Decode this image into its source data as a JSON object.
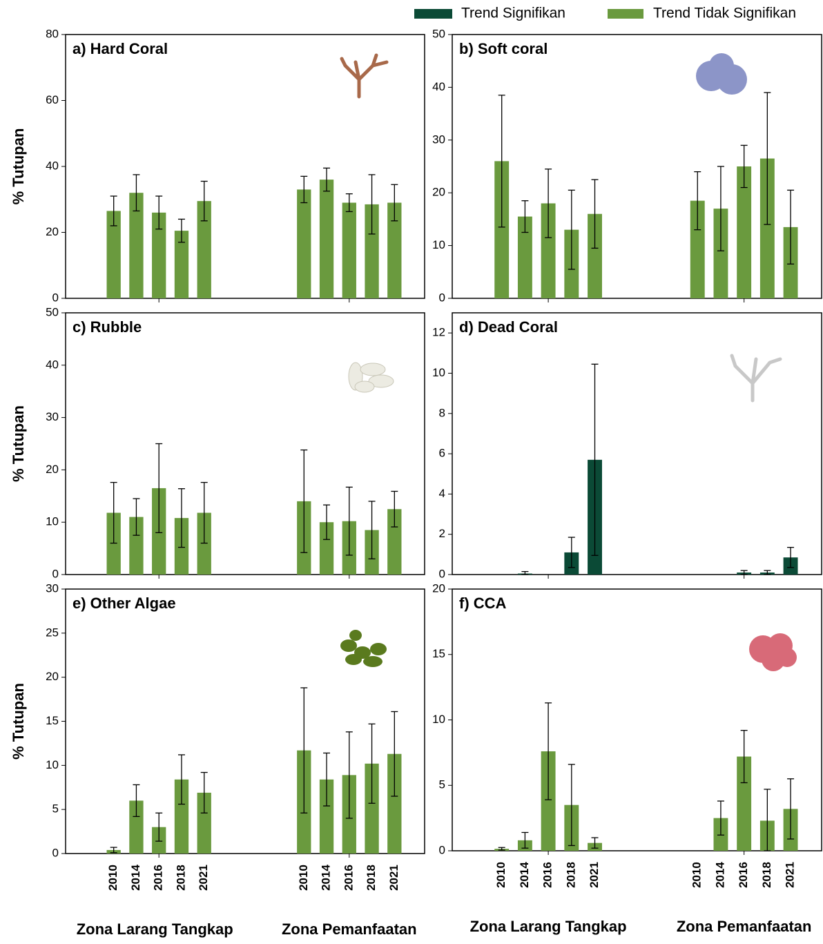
{
  "legend": [
    {
      "name": "Trend Signifikan",
      "color": "#0b4a36"
    },
    {
      "name": "Trend Tidak Signifikan",
      "color": "#6a9a3e"
    }
  ],
  "years": [
    "2010",
    "2014",
    "2016",
    "2018",
    "2021"
  ],
  "zones": [
    "Zona Larang Tangkap",
    "Zona Pemanfaatan"
  ],
  "chart_data": [
    {
      "type": "bar",
      "title": "a) Hard Coral",
      "y_label": "% Tutupan",
      "color": "#6a9a3e",
      "ylim": [
        0,
        80
      ],
      "yticks": [
        0,
        20,
        40,
        60,
        80
      ],
      "values": [
        [
          26.5,
          32,
          26,
          20.5,
          29.5
        ],
        [
          33,
          36,
          29,
          28.5,
          29
        ]
      ],
      "errors": [
        [
          4.5,
          5.5,
          5,
          3.5,
          6
        ],
        [
          4,
          3.5,
          2.7,
          9,
          5.5
        ]
      ]
    },
    {
      "type": "bar",
      "title": "b) Soft coral",
      "color": "#6a9a3e",
      "ylim": [
        0,
        50
      ],
      "yticks": [
        0,
        10,
        20,
        30,
        40,
        50
      ],
      "values": [
        [
          26,
          15.5,
          18,
          13,
          16
        ],
        [
          18.5,
          17,
          25,
          26.5,
          13.5
        ]
      ],
      "errors": [
        [
          12.5,
          3,
          6.5,
          7.5,
          6.5
        ],
        [
          5.5,
          8,
          4,
          12.5,
          7
        ]
      ]
    },
    {
      "type": "bar",
      "title": "c) Rubble",
      "y_label": "% Tutupan",
      "color": "#6a9a3e",
      "ylim": [
        0,
        50
      ],
      "yticks": [
        0,
        10,
        20,
        30,
        40,
        50
      ],
      "values": [
        [
          11.8,
          11,
          16.5,
          10.8,
          11.8
        ],
        [
          14,
          10,
          10.2,
          8.5,
          12.5
        ]
      ],
      "errors": [
        [
          5.8,
          3.5,
          8.5,
          5.6,
          5.8
        ],
        [
          9.8,
          3.3,
          6.5,
          5.5,
          3.4
        ]
      ]
    },
    {
      "type": "bar",
      "title": "d) Dead Coral",
      "color": "#0b4a36",
      "ylim": [
        0,
        13
      ],
      "yticks": [
        0,
        2,
        4,
        6,
        8,
        10,
        12
      ],
      "values": [
        [
          null,
          0.05,
          null,
          1.1,
          5.7
        ],
        [
          null,
          null,
          0.1,
          0.1,
          0.85
        ]
      ],
      "errors": [
        [
          null,
          0.1,
          null,
          0.75,
          4.75
        ],
        [
          null,
          null,
          0.1,
          0.1,
          0.5
        ]
      ]
    },
    {
      "type": "bar",
      "title": "e) Other Algae",
      "y_label": "% Tutupan",
      "color": "#6a9a3e",
      "ylim": [
        0,
        30
      ],
      "yticks": [
        0,
        5,
        10,
        15,
        20,
        25,
        30
      ],
      "values": [
        [
          0.4,
          6,
          3,
          8.4,
          6.9
        ],
        [
          11.7,
          8.4,
          8.9,
          10.2,
          11.3
        ]
      ],
      "errors": [
        [
          0.3,
          1.8,
          1.6,
          2.8,
          2.3
        ],
        [
          7.1,
          3,
          4.9,
          4.5,
          4.8
        ]
      ]
    },
    {
      "type": "bar",
      "title": "f) CCA",
      "color": "#6a9a3e",
      "ylim": [
        0,
        20
      ],
      "yticks": [
        0,
        5,
        10,
        15,
        20
      ],
      "values": [
        [
          0.15,
          0.8,
          7.6,
          3.5,
          0.6
        ],
        [
          null,
          2.5,
          7.2,
          2.3,
          3.2
        ]
      ],
      "errors": [
        [
          0.1,
          0.6,
          3.7,
          3.1,
          0.4
        ],
        [
          null,
          1.3,
          2,
          2.4,
          2.3
        ]
      ]
    }
  ]
}
